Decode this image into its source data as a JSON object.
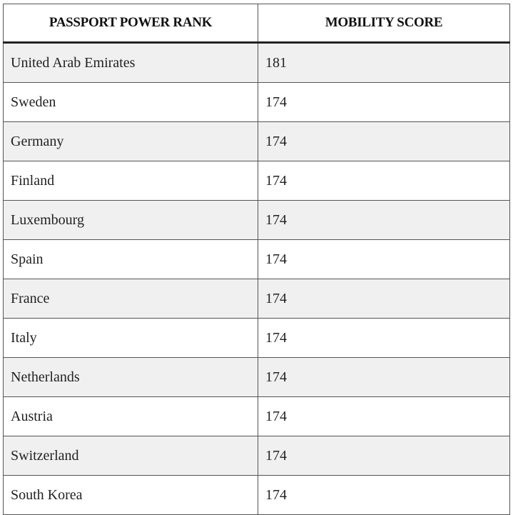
{
  "table": {
    "header": [
      "PASSPORT POWER RANK",
      "MOBILITY SCORE"
    ],
    "rows": [
      [
        "United Arab Emirates",
        "181"
      ],
      [
        "Sweden",
        "174"
      ],
      [
        "Germany",
        "174"
      ],
      [
        "Finland",
        "174"
      ],
      [
        "Luxembourg",
        "174"
      ],
      [
        "Spain",
        "174"
      ],
      [
        "France",
        "174"
      ],
      [
        "Italy",
        "174"
      ],
      [
        "Netherlands",
        "174"
      ],
      [
        "Austria",
        "174"
      ],
      [
        "Switzerland",
        "174"
      ],
      [
        "South Korea",
        "174"
      ]
    ]
  }
}
